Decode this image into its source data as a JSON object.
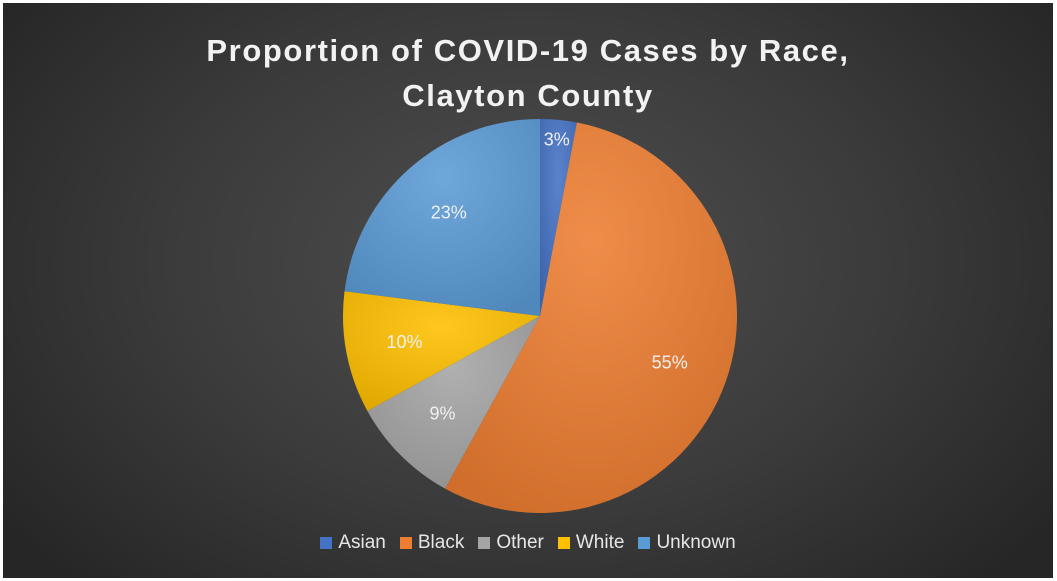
{
  "chart_data": {
    "type": "pie",
    "title": "Proportion of COVID-19 Cases by Race, Clayton County",
    "title_lines": [
      "Proportion of COVID-19 Cases by Race,",
      "Clayton County"
    ],
    "categories": [
      "Asian",
      "Black",
      "Other",
      "White",
      "Unknown"
    ],
    "values": [
      3,
      55,
      9,
      10,
      23
    ],
    "labels": [
      "3%",
      "55%",
      "9%",
      "10%",
      "23%"
    ],
    "colors": [
      "#4472c4",
      "#ed7d31",
      "#a5a5a5",
      "#ffc000",
      "#5b9bd5"
    ],
    "legend_position": "bottom",
    "background": "#3a3a3a"
  }
}
